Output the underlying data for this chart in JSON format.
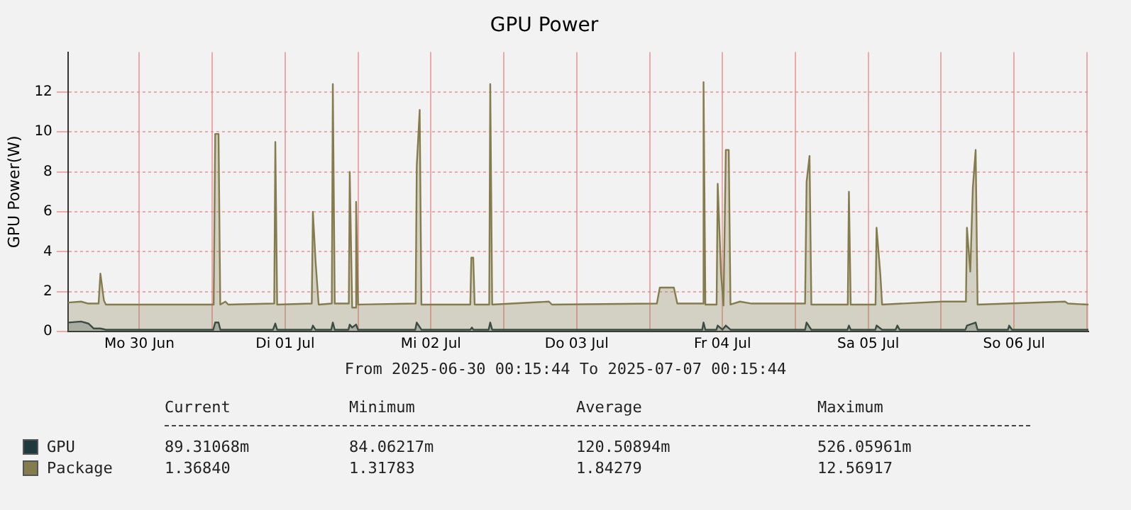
{
  "chart_data": {
    "type": "area",
    "title": "GPU Power",
    "ylabel": "GPU Power(W)",
    "xlim": [
      "2025-06-30T00:15",
      "2025-07-07T00:15"
    ],
    "xticks": [
      {
        "value": "2025-06-30T12:00",
        "label": "Mo 30 Jun"
      },
      {
        "value": "2025-07-01T00:00",
        "label": null
      },
      {
        "value": "2025-07-01T12:00",
        "label": "Di 01 Jul"
      },
      {
        "value": "2025-07-02T00:00",
        "label": null
      },
      {
        "value": "2025-07-02T12:00",
        "label": "Mi 02 Jul"
      },
      {
        "value": "2025-07-03T00:00",
        "label": null
      },
      {
        "value": "2025-07-03T12:00",
        "label": "Do 03 Jul"
      },
      {
        "value": "2025-07-04T00:00",
        "label": null
      },
      {
        "value": "2025-07-04T12:00",
        "label": "Fr 04 Jul"
      },
      {
        "value": "2025-07-05T00:00",
        "label": null
      },
      {
        "value": "2025-07-05T12:00",
        "label": "Sa 05 Jul"
      },
      {
        "value": "2025-07-06T00:00",
        "label": null
      },
      {
        "value": "2025-07-06T12:00",
        "label": "So 06 Jul"
      },
      {
        "value": "2025-07-07T00:00",
        "label": null
      }
    ],
    "ylim": [
      0,
      14
    ],
    "yticks": [
      0,
      2,
      4,
      6,
      8,
      10,
      12
    ],
    "grid": true,
    "legend": "bottom",
    "series": [
      {
        "name": "Package",
        "color": "#857c4e",
        "x": [
          "2025-06-30T00:15",
          "2025-06-30T02:24",
          "2025-06-30T03:36",
          "2025-06-30T05:17",
          "2025-06-30T05:35",
          "2025-06-30T06:10",
          "2025-06-30T06:29",
          "2025-07-01T00:14",
          "2025-07-01T00:29",
          "2025-07-01T01:02",
          "2025-07-01T01:19",
          "2025-07-01T02:10",
          "2025-07-01T02:38",
          "2025-07-01T10:12",
          "2025-07-01T10:23",
          "2025-07-01T10:41",
          "2025-07-01T16:23",
          "2025-07-01T16:34",
          "2025-07-01T17:02",
          "2025-07-01T17:31",
          "2025-07-01T19:41",
          "2025-07-01T19:51",
          "2025-07-01T20:10",
          "2025-07-01T22:29",
          "2025-07-01T22:38",
          "2025-07-01T23:02",
          "2025-07-01T23:34",
          "2025-07-01T23:41",
          "2025-07-02T00:00",
          "2025-07-02T09:29",
          "2025-07-02T09:40",
          "2025-07-02T10:09",
          "2025-07-02T10:26",
          "2025-07-02T18:29",
          "2025-07-02T18:39",
          "2025-07-02T18:58",
          "2025-07-02T19:12",
          "2025-07-02T21:36",
          "2025-07-02T21:46",
          "2025-07-02T22:05",
          "2025-07-03T07:26",
          "2025-07-03T07:55",
          "2025-07-04T01:12",
          "2025-07-04T01:41",
          "2025-07-04T04:00",
          "2025-07-04T04:34",
          "2025-07-04T08:43",
          "2025-07-04T08:53",
          "2025-07-04T09:11",
          "2025-07-04T11:02",
          "2025-07-04T11:13",
          "2025-07-04T11:46",
          "2025-07-04T12:10",
          "2025-07-04T12:33",
          "2025-07-04T13:02",
          "2025-07-04T13:19",
          "2025-07-04T14:53",
          "2025-07-04T16:48",
          "2025-07-05T01:36",
          "2025-07-05T01:51",
          "2025-07-05T02:20",
          "2025-07-05T02:38",
          "2025-07-05T08:38",
          "2025-07-05T08:49",
          "2025-07-05T09:07",
          "2025-07-05T13:12",
          "2025-07-05T13:22",
          "2025-07-05T13:59",
          "2025-07-05T14:17",
          "2025-07-06T00:14",
          "2025-07-06T02:24",
          "2025-07-06T04:05",
          "2025-07-06T04:15",
          "2025-07-06T04:48",
          "2025-07-06T05:13",
          "2025-07-06T05:41",
          "2025-07-06T06:00",
          "2025-07-06T20:24",
          "2025-07-06T20:53",
          "2025-07-07T00:15"
        ],
        "values": [
          1.45,
          1.5,
          1.4,
          1.4,
          2.9,
          1.55,
          1.35,
          1.35,
          9.9,
          9.9,
          1.35,
          1.5,
          1.35,
          1.4,
          9.5,
          1.35,
          1.4,
          6.0,
          3.4,
          1.35,
          1.4,
          12.4,
          1.4,
          1.4,
          8.0,
          1.2,
          1.2,
          6.5,
          1.35,
          1.4,
          8.3,
          11.1,
          1.35,
          1.35,
          3.7,
          3.7,
          1.35,
          1.35,
          12.4,
          1.35,
          1.5,
          1.35,
          1.4,
          2.2,
          2.2,
          1.4,
          1.4,
          12.5,
          1.35,
          1.35,
          7.4,
          2.9,
          1.3,
          9.1,
          9.1,
          1.35,
          1.5,
          1.4,
          1.4,
          7.5,
          8.8,
          1.35,
          1.35,
          7.0,
          1.35,
          1.35,
          5.2,
          2.9,
          1.35,
          1.5,
          1.5,
          1.5,
          5.2,
          3.0,
          7.2,
          9.1,
          1.35,
          1.5,
          1.4,
          1.35
        ]
      },
      {
        "name": "GPU",
        "color": "#1f3a3d",
        "x": [
          "2025-06-30T00:15",
          "2025-06-30T02:24",
          "2025-06-30T03:36",
          "2025-06-30T04:30",
          "2025-06-30T05:35",
          "2025-06-30T06:30",
          "2025-07-01T00:10",
          "2025-07-01T00:29",
          "2025-07-01T01:02",
          "2025-07-01T01:20",
          "2025-07-01T10:00",
          "2025-07-01T10:23",
          "2025-07-01T10:41",
          "2025-07-01T16:20",
          "2025-07-01T16:34",
          "2025-07-01T17:00",
          "2025-07-01T19:35",
          "2025-07-01T19:51",
          "2025-07-01T20:10",
          "2025-07-01T22:25",
          "2025-07-01T22:38",
          "2025-07-01T23:02",
          "2025-07-01T23:41",
          "2025-07-02T00:00",
          "2025-07-02T09:25",
          "2025-07-02T09:40",
          "2025-07-02T10:26",
          "2025-07-02T18:29",
          "2025-07-02T18:45",
          "2025-07-02T19:00",
          "2025-07-02T21:30",
          "2025-07-02T21:46",
          "2025-07-02T22:05",
          "2025-07-04T08:40",
          "2025-07-04T08:53",
          "2025-07-04T09:11",
          "2025-07-04T11:00",
          "2025-07-04T11:13",
          "2025-07-04T12:00",
          "2025-07-04T12:33",
          "2025-07-04T13:19",
          "2025-07-05T01:36",
          "2025-07-05T01:51",
          "2025-07-05T02:38",
          "2025-07-05T08:35",
          "2025-07-05T08:49",
          "2025-07-05T09:07",
          "2025-07-05T13:10",
          "2025-07-05T13:22",
          "2025-07-05T14:17",
          "2025-07-05T16:30",
          "2025-07-05T16:48",
          "2025-07-05T17:10",
          "2025-07-06T04:00",
          "2025-07-06T04:15",
          "2025-07-06T05:41",
          "2025-07-06T06:00",
          "2025-07-06T11:00",
          "2025-07-06T11:12",
          "2025-07-06T11:40",
          "2025-07-07T00:15"
        ],
        "values": [
          0.45,
          0.5,
          0.4,
          0.15,
          0.15,
          0.09,
          0.09,
          0.45,
          0.45,
          0.09,
          0.09,
          0.4,
          0.09,
          0.09,
          0.3,
          0.09,
          0.09,
          0.45,
          0.09,
          0.09,
          0.35,
          0.2,
          0.35,
          0.09,
          0.09,
          0.45,
          0.09,
          0.09,
          0.2,
          0.09,
          0.09,
          0.45,
          0.09,
          0.09,
          0.45,
          0.09,
          0.09,
          0.3,
          0.09,
          0.3,
          0.09,
          0.09,
          0.45,
          0.09,
          0.09,
          0.3,
          0.09,
          0.09,
          0.3,
          0.09,
          0.09,
          0.3,
          0.09,
          0.09,
          0.3,
          0.45,
          0.09,
          0.09,
          0.3,
          0.09,
          0.09
        ]
      }
    ],
    "annotations": [
      "From 2025-06-30 00:15:44 To 2025-07-07 00:15:44",
      "Current",
      "Minimum",
      "Average",
      "Maximum",
      "89.31068m",
      "84.06217m",
      "120.50894m",
      "526.05961m",
      "1.36840",
      "1.31783",
      "1.84279",
      "12.56917"
    ]
  }
}
